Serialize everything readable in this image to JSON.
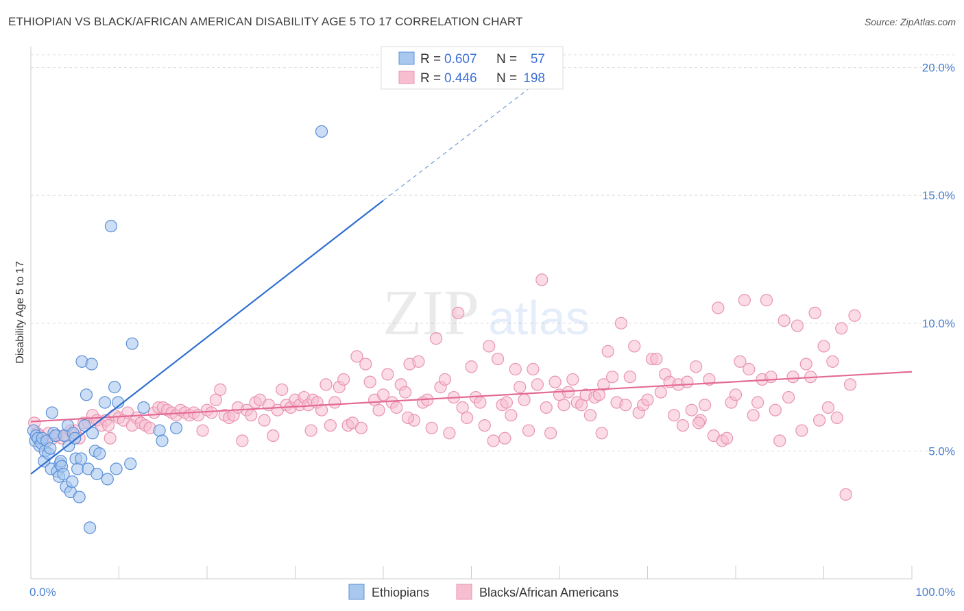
{
  "header": {
    "title": "ETHIOPIAN VS BLACK/AFRICAN AMERICAN DISABILITY AGE 5 TO 17 CORRELATION CHART",
    "source": "Source: ZipAtlas.com"
  },
  "watermark": {
    "zip": "ZIP",
    "atlas": "atlas"
  },
  "colors": {
    "ethiopians_fill": "#a9c8ee",
    "ethiopians_stroke": "#5b8fd8",
    "ethiopians_line": "#2f6fd1",
    "blacks_fill": "#f7bed0",
    "blacks_stroke": "#e893b0",
    "blacks_line": "#e36a96",
    "tick_text": "#4a7fd0",
    "grid": "#dddddd"
  },
  "legend": {
    "rows": [
      {
        "r_label": "R = ",
        "r_value": "0.607",
        "n_label": "N = ",
        "n_value": "57"
      },
      {
        "r_label": "R = ",
        "r_value": "0.446",
        "n_label": "N = ",
        "n_value": "198"
      }
    ]
  },
  "chart_data": {
    "type": "scatter",
    "title": "ETHIOPIAN VS BLACK/AFRICAN AMERICAN DISABILITY AGE 5 TO 17 CORRELATION CHART",
    "xlabel": "",
    "ylabel": "Disability Age 5 to 17",
    "xlim": [
      0,
      100
    ],
    "ylim": [
      0,
      20.5
    ],
    "x_tick_labels": [
      "0.0%",
      "100.0%"
    ],
    "y_ticks": [
      5,
      10,
      15,
      20
    ],
    "y_tick_labels": [
      "5.0%",
      "10.0%",
      "15.0%",
      "20.0%"
    ],
    "grid": true,
    "legend_placement": "top-center",
    "series": [
      {
        "name": "Ethiopians",
        "r": 0.607,
        "n": 57,
        "trend": {
          "x0": 0,
          "y0": 4.1,
          "x1": 40,
          "y1": 14.8,
          "dashed_to_x": 60,
          "dashed_to_y": 20.1
        },
        "points": [
          [
            0.3,
            5.8
          ],
          [
            0.5,
            5.4
          ],
          [
            0.6,
            5.6
          ],
          [
            0.8,
            5.5
          ],
          [
            1.0,
            5.2
          ],
          [
            1.2,
            5.3
          ],
          [
            1.3,
            5.5
          ],
          [
            1.5,
            4.6
          ],
          [
            1.6,
            5.0
          ],
          [
            1.8,
            5.4
          ],
          [
            2.0,
            4.9
          ],
          [
            2.2,
            5.1
          ],
          [
            2.3,
            4.3
          ],
          [
            2.4,
            6.5
          ],
          [
            2.6,
            5.7
          ],
          [
            2.8,
            5.6
          ],
          [
            3.0,
            4.2
          ],
          [
            3.2,
            4.0
          ],
          [
            3.3,
            4.5
          ],
          [
            3.4,
            4.6
          ],
          [
            3.5,
            4.4
          ],
          [
            3.7,
            4.1
          ],
          [
            3.8,
            5.6
          ],
          [
            4.0,
            3.6
          ],
          [
            4.2,
            6.0
          ],
          [
            4.3,
            5.2
          ],
          [
            4.5,
            3.4
          ],
          [
            4.7,
            3.8
          ],
          [
            4.8,
            5.7
          ],
          [
            5.0,
            5.5
          ],
          [
            5.1,
            4.7
          ],
          [
            5.3,
            4.3
          ],
          [
            5.5,
            3.2
          ],
          [
            5.7,
            4.7
          ],
          [
            5.8,
            8.5
          ],
          [
            6.1,
            6.0
          ],
          [
            6.3,
            7.2
          ],
          [
            6.5,
            4.3
          ],
          [
            6.7,
            2.0
          ],
          [
            6.9,
            8.4
          ],
          [
            7.0,
            5.7
          ],
          [
            7.3,
            5.0
          ],
          [
            7.5,
            4.1
          ],
          [
            7.8,
            4.9
          ],
          [
            8.4,
            6.9
          ],
          [
            8.7,
            3.9
          ],
          [
            9.1,
            13.8
          ],
          [
            9.5,
            7.5
          ],
          [
            9.7,
            4.3
          ],
          [
            9.9,
            6.9
          ],
          [
            11.3,
            4.5
          ],
          [
            11.5,
            9.2
          ],
          [
            12.8,
            6.7
          ],
          [
            14.6,
            5.8
          ],
          [
            14.9,
            5.4
          ],
          [
            16.5,
            5.9
          ],
          [
            33.0,
            17.5
          ]
        ]
      },
      {
        "name": "Blacks/African Americans",
        "r": 0.446,
        "n": 198,
        "trend": {
          "x0": 0,
          "y0": 6.15,
          "x1": 100,
          "y1": 8.1
        },
        "points": [
          [
            0.4,
            6.1
          ],
          [
            0.7,
            5.7
          ],
          [
            1.0,
            5.6
          ],
          [
            1.5,
            5.4
          ],
          [
            2.0,
            5.7
          ],
          [
            2.5,
            5.5
          ],
          [
            3.0,
            5.6
          ],
          [
            3.5,
            5.5
          ],
          [
            4.0,
            5.6
          ],
          [
            4.5,
            5.8
          ],
          [
            5.0,
            5.8
          ],
          [
            5.5,
            5.5
          ],
          [
            6.0,
            6.1
          ],
          [
            6.5,
            6.1
          ],
          [
            7.0,
            6.4
          ],
          [
            7.5,
            6.2
          ],
          [
            8.0,
            6.0
          ],
          [
            8.5,
            6.2
          ],
          [
            9.0,
            5.5
          ],
          [
            9.5,
            6.4
          ],
          [
            10.0,
            6.3
          ],
          [
            10.5,
            6.2
          ],
          [
            11.0,
            6.5
          ],
          [
            11.5,
            6.0
          ],
          [
            12.0,
            6.3
          ],
          [
            12.5,
            6.1
          ],
          [
            13.0,
            6.0
          ],
          [
            13.5,
            5.9
          ],
          [
            14.0,
            6.5
          ],
          [
            14.5,
            6.7
          ],
          [
            15.0,
            6.7
          ],
          [
            15.5,
            6.6
          ],
          [
            16.0,
            6.5
          ],
          [
            16.5,
            6.4
          ],
          [
            17.0,
            6.6
          ],
          [
            17.5,
            6.5
          ],
          [
            18.0,
            6.4
          ],
          [
            18.5,
            6.5
          ],
          [
            19.0,
            6.4
          ],
          [
            19.5,
            5.8
          ],
          [
            20.0,
            6.6
          ],
          [
            20.5,
            6.5
          ],
          [
            21.0,
            7.0
          ],
          [
            21.5,
            7.4
          ],
          [
            22.0,
            6.4
          ],
          [
            22.5,
            6.3
          ],
          [
            23.0,
            6.4
          ],
          [
            23.5,
            6.7
          ],
          [
            24.0,
            5.4
          ],
          [
            24.5,
            6.6
          ],
          [
            25.0,
            6.4
          ],
          [
            25.5,
            6.9
          ],
          [
            26.0,
            7.0
          ],
          [
            26.5,
            6.2
          ],
          [
            27.0,
            6.8
          ],
          [
            27.5,
            5.6
          ],
          [
            28.0,
            6.6
          ],
          [
            28.5,
            7.4
          ],
          [
            29.0,
            6.8
          ],
          [
            29.5,
            6.7
          ],
          [
            30.0,
            7.0
          ],
          [
            30.5,
            6.8
          ],
          [
            31.0,
            7.1
          ],
          [
            31.5,
            6.8
          ],
          [
            32.0,
            7.0
          ],
          [
            32.5,
            6.9
          ],
          [
            33.0,
            6.6
          ],
          [
            33.5,
            7.6
          ],
          [
            34.0,
            6.0
          ],
          [
            34.5,
            6.9
          ],
          [
            35.0,
            7.5
          ],
          [
            35.5,
            7.8
          ],
          [
            36.0,
            6.0
          ],
          [
            36.5,
            6.1
          ],
          [
            37.0,
            8.7
          ],
          [
            37.5,
            5.9
          ],
          [
            38.0,
            8.4
          ],
          [
            38.5,
            7.7
          ],
          [
            39.0,
            7.0
          ],
          [
            39.5,
            6.6
          ],
          [
            40.0,
            7.2
          ],
          [
            40.5,
            8.0
          ],
          [
            41.0,
            6.9
          ],
          [
            41.5,
            6.7
          ],
          [
            42.0,
            7.6
          ],
          [
            42.5,
            7.3
          ],
          [
            43.0,
            8.4
          ],
          [
            43.5,
            6.2
          ],
          [
            44.0,
            8.5
          ],
          [
            44.5,
            6.9
          ],
          [
            45.0,
            7.0
          ],
          [
            45.5,
            5.9
          ],
          [
            46.0,
            9.4
          ],
          [
            46.5,
            7.5
          ],
          [
            47.0,
            7.8
          ],
          [
            47.5,
            5.7
          ],
          [
            48.0,
            7.1
          ],
          [
            48.5,
            10.4
          ],
          [
            49.0,
            6.7
          ],
          [
            49.5,
            6.3
          ],
          [
            50.0,
            8.3
          ],
          [
            50.5,
            7.1
          ],
          [
            51.0,
            6.9
          ],
          [
            51.5,
            6.0
          ],
          [
            52.0,
            9.1
          ],
          [
            52.5,
            5.4
          ],
          [
            53.0,
            8.6
          ],
          [
            53.5,
            6.8
          ],
          [
            54.0,
            6.9
          ],
          [
            54.5,
            6.4
          ],
          [
            55.0,
            8.2
          ],
          [
            55.5,
            7.5
          ],
          [
            56.0,
            7.0
          ],
          [
            56.5,
            5.8
          ],
          [
            57.0,
            8.2
          ],
          [
            57.5,
            7.6
          ],
          [
            58.0,
            11.7
          ],
          [
            58.5,
            6.7
          ],
          [
            59.0,
            5.7
          ],
          [
            59.5,
            7.7
          ],
          [
            60.0,
            7.2
          ],
          [
            60.5,
            6.8
          ],
          [
            61.0,
            7.3
          ],
          [
            61.5,
            7.8
          ],
          [
            62.0,
            6.9
          ],
          [
            62.5,
            6.8
          ],
          [
            63.0,
            7.2
          ],
          [
            63.5,
            6.4
          ],
          [
            64.0,
            7.1
          ],
          [
            64.5,
            7.2
          ],
          [
            65.0,
            7.6
          ],
          [
            65.5,
            8.9
          ],
          [
            66.0,
            7.9
          ],
          [
            66.5,
            6.9
          ],
          [
            67.0,
            10.0
          ],
          [
            67.5,
            6.8
          ],
          [
            68.0,
            7.9
          ],
          [
            68.5,
            9.1
          ],
          [
            69.0,
            6.5
          ],
          [
            69.5,
            6.8
          ],
          [
            70.0,
            7.0
          ],
          [
            70.5,
            8.6
          ],
          [
            71.0,
            8.6
          ],
          [
            71.5,
            7.3
          ],
          [
            72.0,
            8.0
          ],
          [
            72.5,
            7.7
          ],
          [
            73.0,
            6.4
          ],
          [
            73.5,
            7.6
          ],
          [
            74.0,
            6.0
          ],
          [
            74.5,
            7.7
          ],
          [
            75.0,
            6.6
          ],
          [
            75.5,
            8.3
          ],
          [
            76.0,
            6.2
          ],
          [
            76.5,
            6.8
          ],
          [
            77.0,
            7.8
          ],
          [
            77.5,
            5.6
          ],
          [
            78.0,
            10.6
          ],
          [
            78.5,
            5.4
          ],
          [
            79.0,
            5.5
          ],
          [
            79.5,
            6.9
          ],
          [
            80.0,
            7.2
          ],
          [
            80.5,
            8.5
          ],
          [
            81.0,
            10.9
          ],
          [
            81.5,
            8.2
          ],
          [
            82.0,
            6.4
          ],
          [
            82.5,
            6.9
          ],
          [
            83.0,
            7.8
          ],
          [
            83.5,
            10.9
          ],
          [
            84.0,
            7.9
          ],
          [
            84.5,
            6.6
          ],
          [
            85.0,
            5.4
          ],
          [
            85.5,
            10.1
          ],
          [
            86.0,
            7.1
          ],
          [
            86.5,
            7.9
          ],
          [
            87.0,
            9.9
          ],
          [
            87.5,
            5.8
          ],
          [
            88.0,
            8.4
          ],
          [
            88.5,
            7.9
          ],
          [
            89.0,
            10.4
          ],
          [
            89.5,
            6.2
          ],
          [
            90.0,
            9.1
          ],
          [
            90.5,
            6.7
          ],
          [
            91.0,
            8.5
          ],
          [
            91.5,
            6.3
          ],
          [
            92.0,
            9.8
          ],
          [
            92.5,
            3.3
          ],
          [
            93.0,
            7.6
          ],
          [
            93.5,
            10.3
          ],
          [
            8.8,
            6.0
          ],
          [
            31.8,
            5.8
          ],
          [
            42.8,
            6.3
          ],
          [
            53.8,
            5.5
          ],
          [
            64.8,
            5.7
          ],
          [
            75.8,
            6.1
          ]
        ]
      }
    ]
  },
  "bottom_legend": {
    "items": [
      {
        "label": "Ethiopians"
      },
      {
        "label": "Blacks/African Americans"
      }
    ]
  }
}
